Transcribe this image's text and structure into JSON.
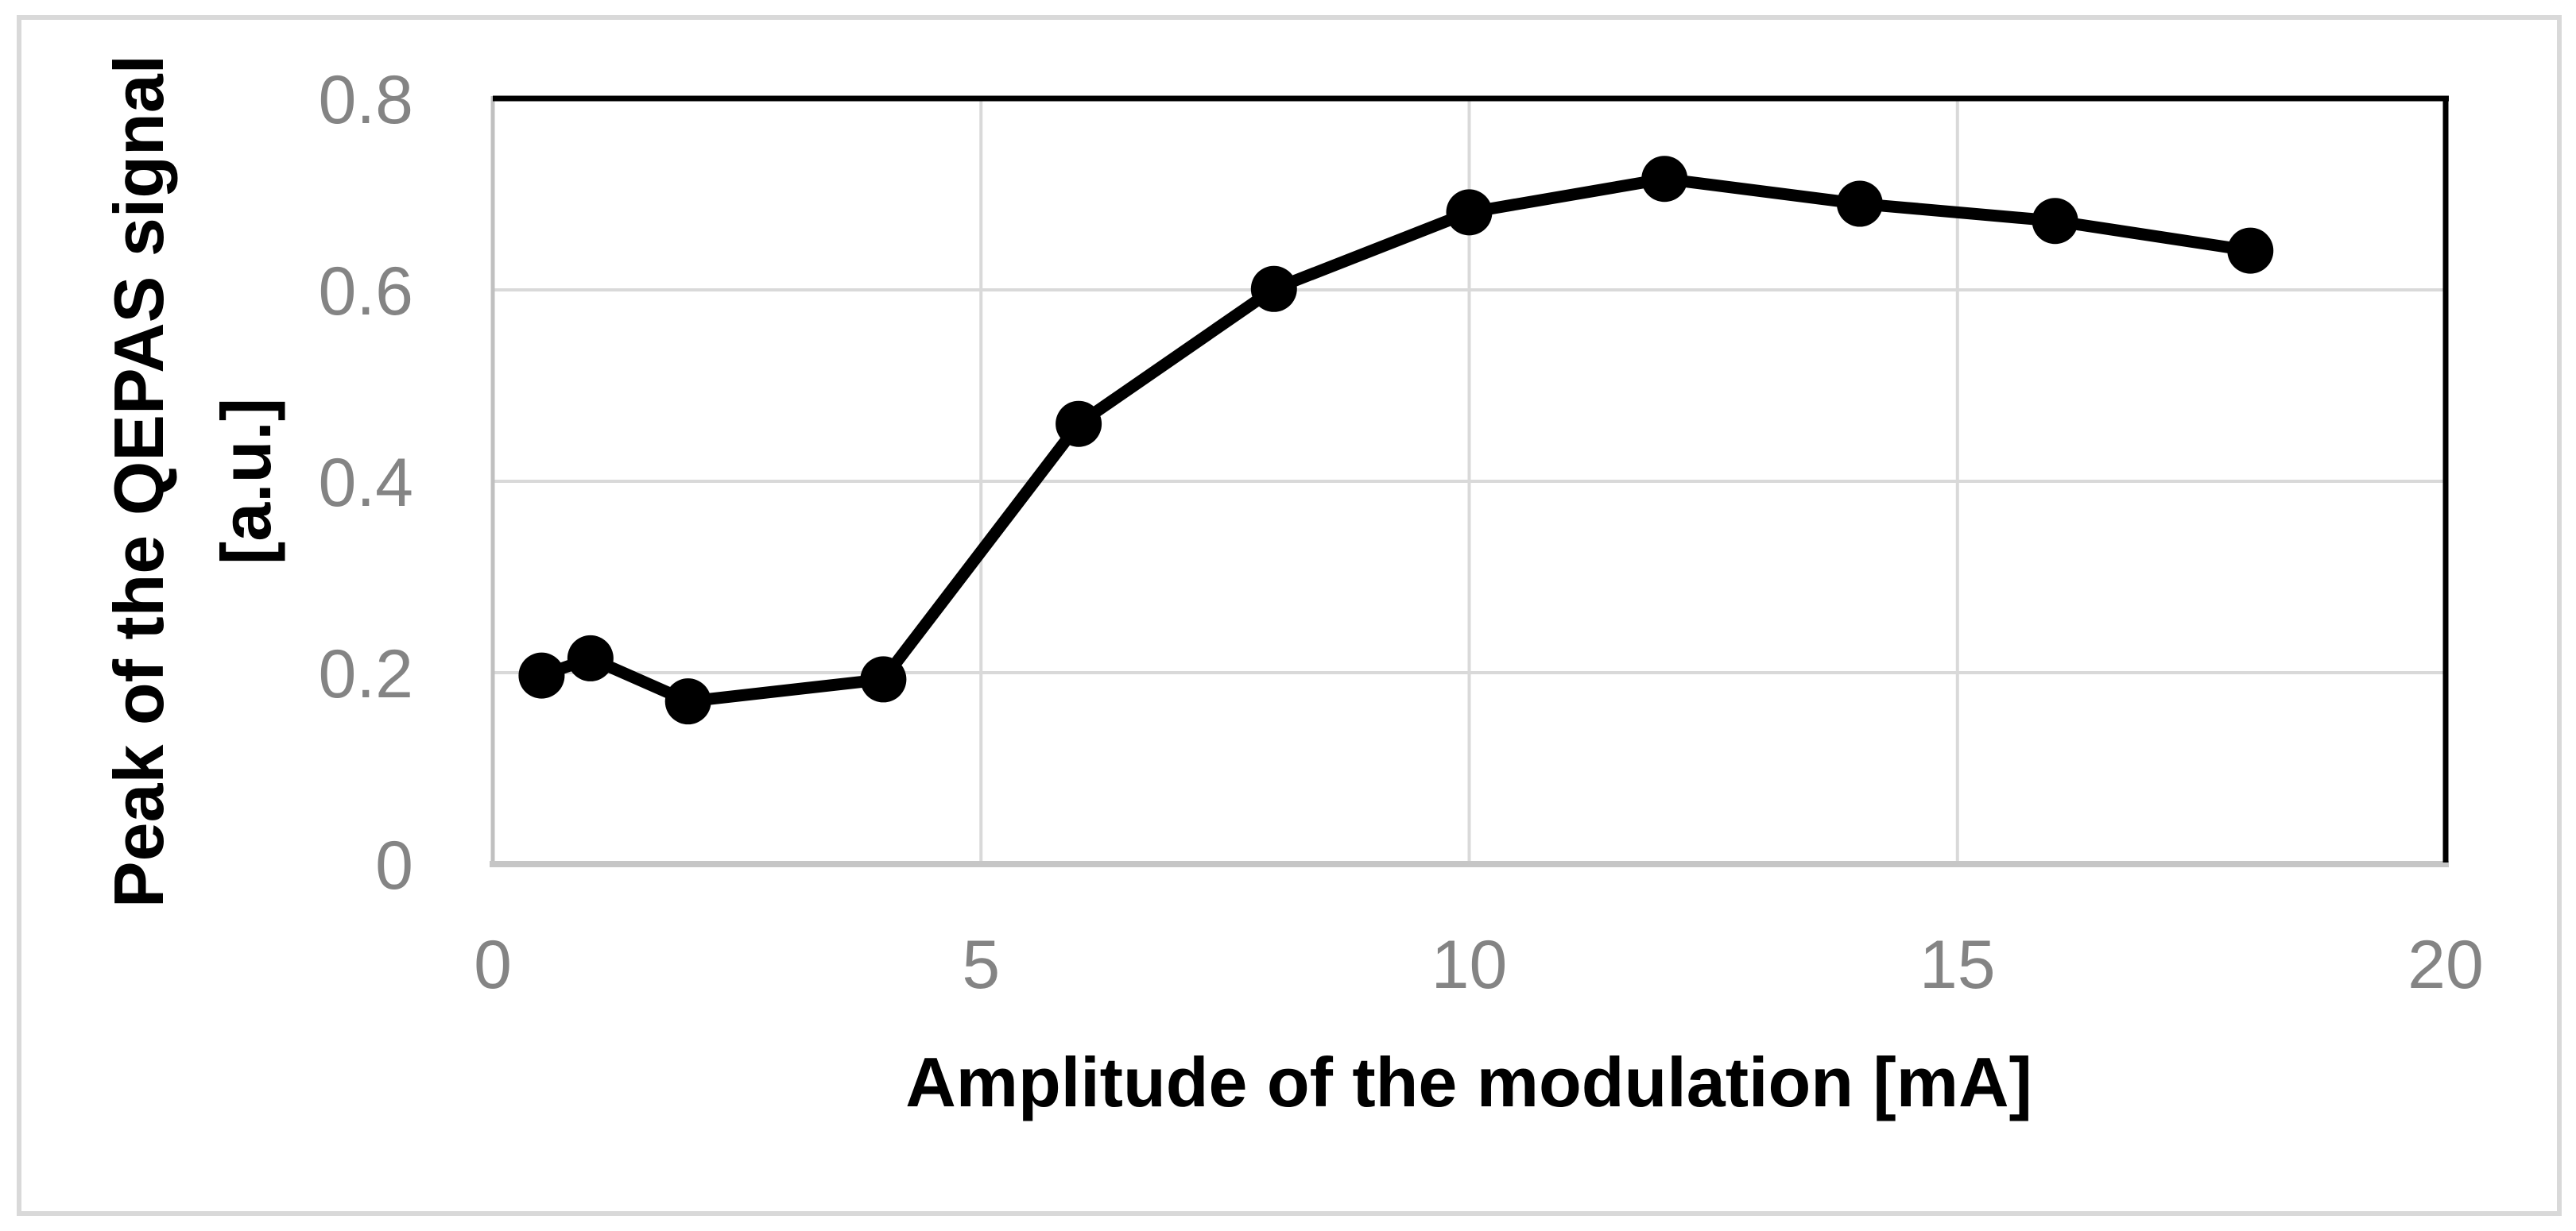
{
  "chart_data": {
    "type": "line",
    "title": "",
    "xlabel": "Amplitude of the modulation [mA]",
    "ylabel_line1": "Peak of the QEPAS signal",
    "ylabel_line2": "[a.u.]",
    "x": [
      0.5,
      1,
      2,
      4,
      6,
      8,
      10,
      12,
      14,
      16,
      18
    ],
    "y": [
      0.197,
      0.215,
      0.17,
      0.193,
      0.46,
      0.601,
      0.681,
      0.716,
      0.69,
      0.672,
      0.641
    ],
    "series": [
      {
        "name": "Peak of the QEPAS signal",
        "marker": "circle",
        "color": "#000000"
      }
    ],
    "xlim": [
      0,
      20
    ],
    "ylim": [
      0,
      0.8
    ],
    "x_ticks": [
      0,
      5,
      10,
      15,
      20
    ],
    "x_tick_labels": [
      "0",
      "5",
      "10",
      "15",
      "20"
    ],
    "y_ticks": [
      0,
      0.2,
      0.4,
      0.6,
      0.8
    ],
    "y_tick_labels": [
      "0",
      "0.2",
      "0.4",
      "0.6",
      "0.8"
    ],
    "grid": true,
    "legend": false,
    "colors": {
      "series": "#000000",
      "gridline": "#d9d9d9",
      "axis_line_left": "#c0c0c0",
      "axis_line_bottom": "#c6c6c6",
      "plot_border_top_right": "#000000",
      "tick_label": "#848484",
      "axis_title": "#000000",
      "outer_border": "#d9d9d9",
      "background": "#ffffff"
    }
  }
}
